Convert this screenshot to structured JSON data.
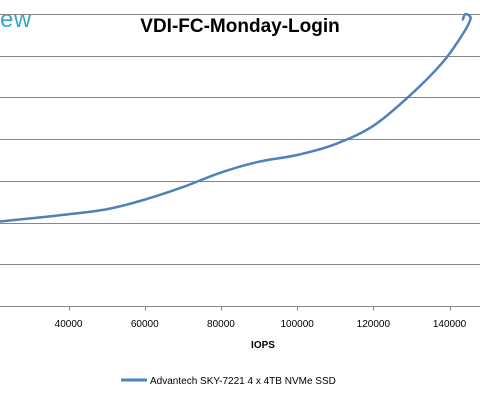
{
  "logo": {
    "text": "ew"
  },
  "chart_data": {
    "type": "line",
    "title": "VDI-FC-Monday-Login",
    "xlabel": "IOPS",
    "ylabel": "",
    "xlim": [
      22000,
      148000
    ],
    "ylim": [
      0,
      7
    ],
    "x_ticks": [
      40000,
      60000,
      80000,
      100000,
      120000,
      140000
    ],
    "x_tick_labels": [
      "40000",
      "60000",
      "80000",
      "100000",
      "120000",
      "140000"
    ],
    "y_ticks": [
      1,
      2,
      3,
      4,
      5,
      6,
      7
    ],
    "grid": true,
    "legend": "bottom",
    "series": [
      {
        "name": "Advantech SKY-7221 4 x 4TB NVMe SSD",
        "color": "#4f81bd",
        "points": [
          [
            21500,
            2.02
          ],
          [
            30000,
            2.1
          ],
          [
            40000,
            2.2
          ],
          [
            50000,
            2.32
          ],
          [
            60000,
            2.55
          ],
          [
            70000,
            2.85
          ],
          [
            80000,
            3.2
          ],
          [
            90000,
            3.46
          ],
          [
            100000,
            3.62
          ],
          [
            110000,
            3.88
          ],
          [
            120000,
            4.32
          ],
          [
            130000,
            5.08
          ],
          [
            138000,
            5.82
          ],
          [
            143000,
            6.45
          ],
          [
            145500,
            6.88
          ],
          [
            144200,
            7.0
          ],
          [
            143500,
            6.87
          ]
        ]
      }
    ]
  }
}
